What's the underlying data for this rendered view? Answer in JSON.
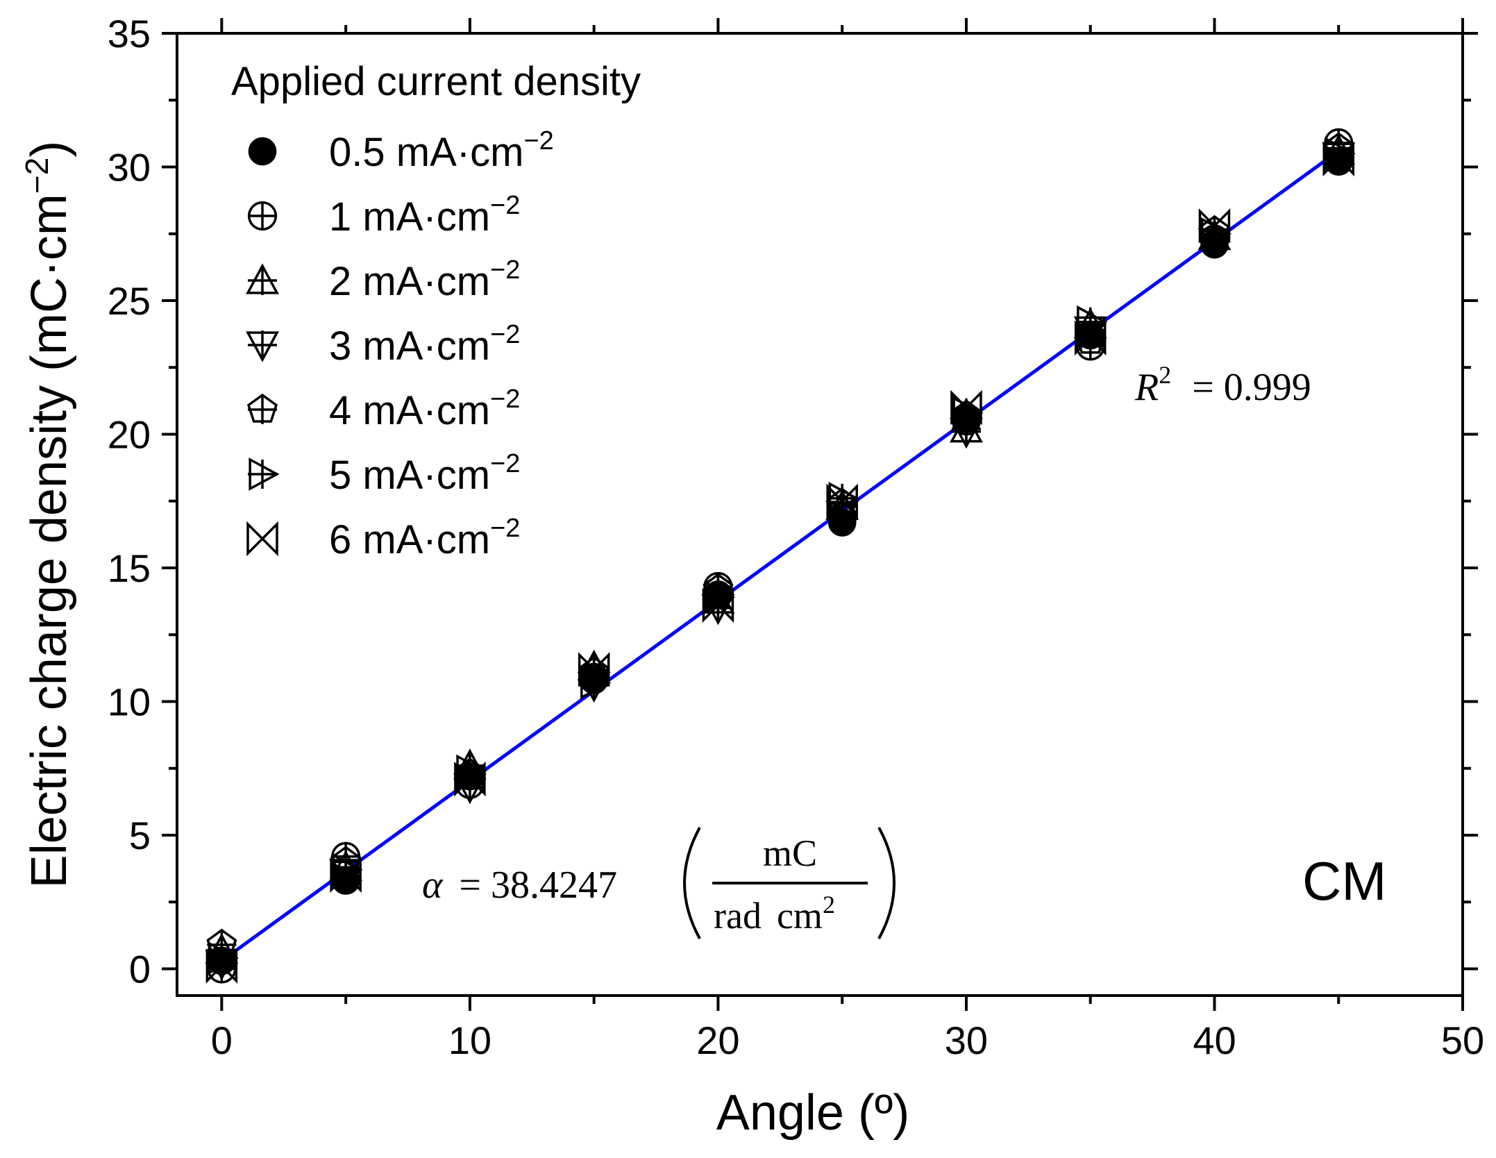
{
  "chart_data": {
    "type": "scatter",
    "title": "",
    "xlabel": "Angle (º)",
    "ylabel_main": "Electric charge density (mC·cm",
    "ylabel_sup": "−2",
    "ylabel_tail": ")",
    "xlim": [
      -1.8,
      50
    ],
    "ylim": [
      -1,
      35
    ],
    "xticks": [
      0,
      10,
      20,
      30,
      40,
      50
    ],
    "yticks": [
      0,
      5,
      10,
      15,
      20,
      25,
      30,
      35
    ],
    "grid": false,
    "legend": {
      "title": "Applied current density",
      "placement": "top-left",
      "unit_text": " mA·cm",
      "unit_sup": "−2"
    },
    "x": [
      0,
      5,
      10,
      15,
      20,
      25,
      30,
      35,
      40,
      45
    ],
    "series": [
      {
        "name": "0.5",
        "marker": "filled-circle",
        "values": [
          0.3,
          3.3,
          7.2,
          10.8,
          14.0,
          16.7,
          20.6,
          23.7,
          27.1,
          30.2
        ]
      },
      {
        "name": "1",
        "marker": "circle-plus",
        "values": [
          0.0,
          4.2,
          6.9,
          10.9,
          14.3,
          16.9,
          20.5,
          23.3,
          27.3,
          30.9
        ]
      },
      {
        "name": "2",
        "marker": "triangle-up-plus",
        "values": [
          0.7,
          3.8,
          7.6,
          11.3,
          13.8,
          17.3,
          20.2,
          24.1,
          27.4,
          30.6
        ]
      },
      {
        "name": "3",
        "marker": "triangle-down-plus",
        "values": [
          0.2,
          3.6,
          6.8,
          10.6,
          13.5,
          17.0,
          20.1,
          23.9,
          27.2,
          30.4
        ]
      },
      {
        "name": "4",
        "marker": "pentagon-plus",
        "values": [
          0.9,
          4.0,
          7.3,
          11.1,
          14.2,
          17.4,
          20.7,
          23.5,
          27.6,
          30.7
        ]
      },
      {
        "name": "5",
        "marker": "triangle-right-plus",
        "values": [
          0.4,
          3.7,
          7.4,
          10.7,
          13.9,
          17.6,
          20.8,
          24.2,
          27.5,
          30.5
        ]
      },
      {
        "name": "6",
        "marker": "x-bowtie",
        "values": [
          0.1,
          3.5,
          7.1,
          11.2,
          13.6,
          17.5,
          21.0,
          23.6,
          27.8,
          30.3
        ]
      }
    ],
    "fit": {
      "name": "linear fit",
      "color": "#0000ff",
      "x": [
        0,
        45
      ],
      "y": [
        0.3,
        30.6
      ]
    },
    "annotations": {
      "r2_symbol": "R",
      "r2_sup": "2",
      "r2_value": "= 0.999",
      "alpha_symbol": "α",
      "alpha_value": "= 38.4247",
      "alpha_num": "mC",
      "alpha_den_a": "rad",
      "alpha_den_b": "cm",
      "alpha_den_sup": "2",
      "label": "CM"
    },
    "colors": {
      "marker": "#000000",
      "fit": "#0000ff",
      "axes": "#000000"
    }
  }
}
